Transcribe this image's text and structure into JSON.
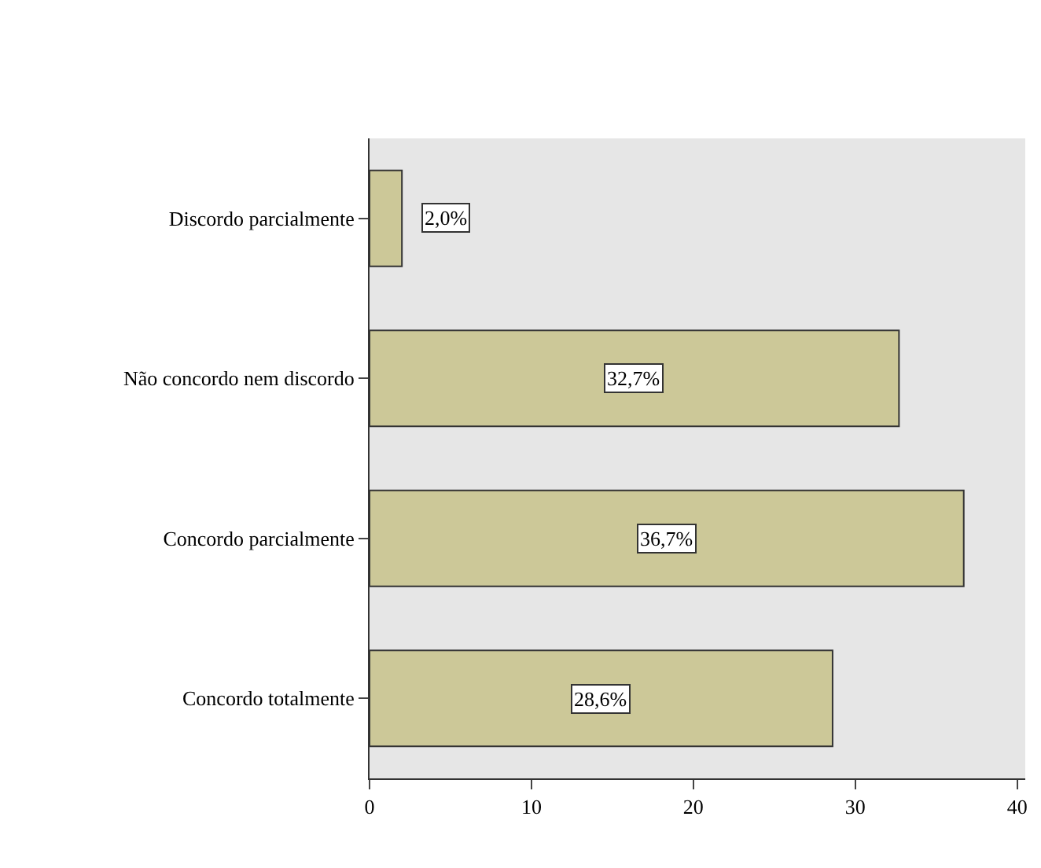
{
  "chart_data": {
    "type": "bar",
    "orientation": "horizontal",
    "categories": [
      "Discordo parcialmente",
      "Não concordo nem discordo",
      "Concordo parcialmente",
      "Concordo totalmente"
    ],
    "values": [
      2.0,
      32.7,
      36.7,
      28.6
    ],
    "value_labels": [
      "2,0%",
      "32,7%",
      "36,7%",
      "28,6%"
    ],
    "color": "#ccc898",
    "xlim": [
      0,
      40.5
    ],
    "xticks": [
      0,
      10,
      20,
      30,
      40
    ],
    "grid": false
  }
}
